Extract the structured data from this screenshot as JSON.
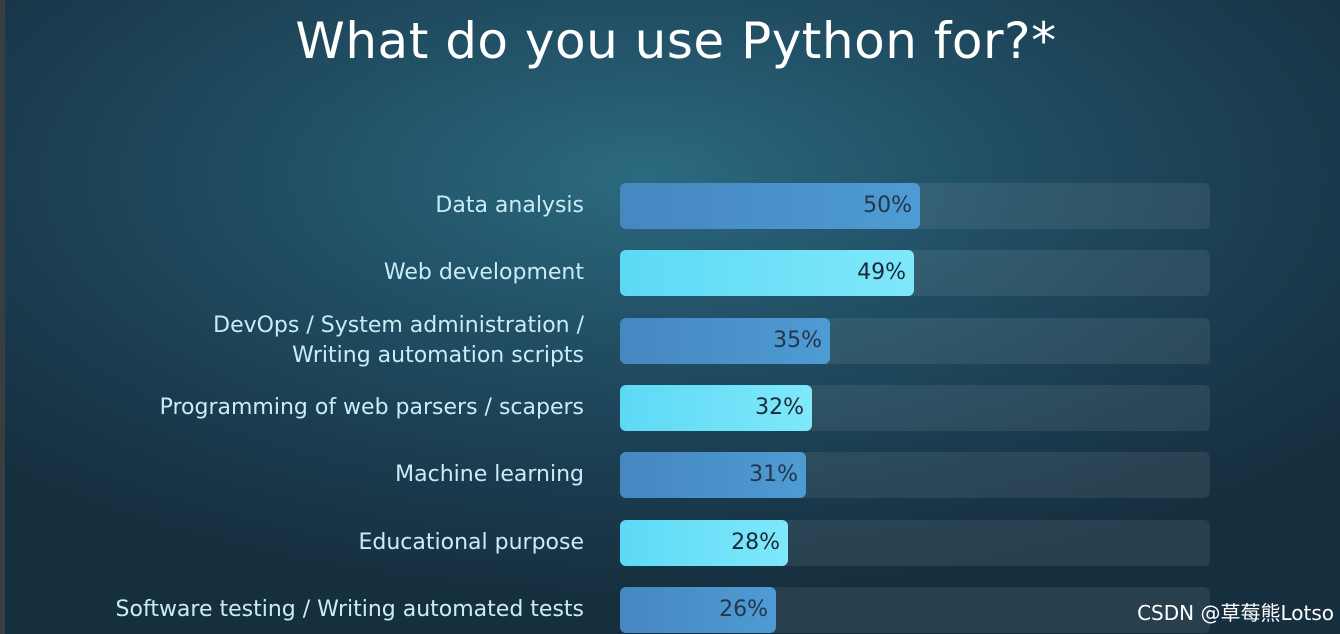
{
  "title": "What do you use Python for?*",
  "watermark": "CSDN @草莓熊Lotso",
  "chart_data": {
    "type": "bar",
    "orientation": "horizontal",
    "title": "What do you use Python for?*",
    "categories": [
      [
        "Data analysis"
      ],
      [
        "Web development"
      ],
      [
        "DevOps / System administration /",
        "Writing automation scripts"
      ],
      [
        "Programming of web parsers / scapers"
      ],
      [
        "Machine learning"
      ],
      [
        "Educational purpose"
      ],
      [
        "Software testing / Writing automated tests"
      ]
    ],
    "values": [
      50,
      49,
      35,
      32,
      31,
      28,
      26
    ],
    "value_labels": [
      "50%",
      "49%",
      "35%",
      "32%",
      "31%",
      "28%",
      "26%"
    ],
    "bar_styles": [
      "dark",
      "light",
      "dark",
      "light",
      "dark",
      "light",
      "dark"
    ],
    "xlim": [
      0,
      100
    ],
    "colors": {
      "dark": "#4a90c9",
      "light": "#6ee2f8",
      "track": "#2f6275"
    },
    "grid": false,
    "legend": "none"
  }
}
